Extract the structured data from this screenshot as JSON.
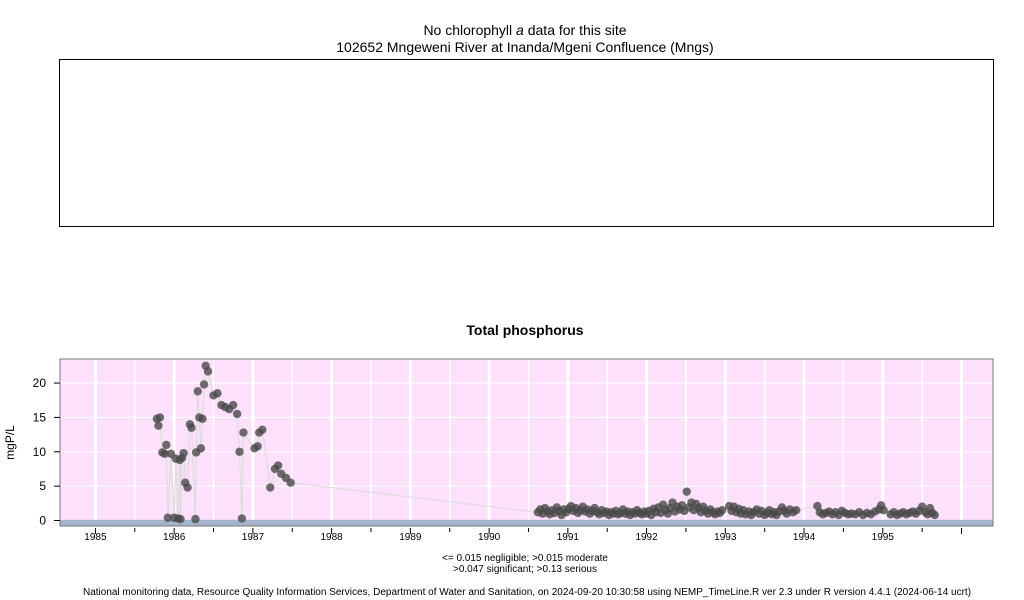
{
  "header": {
    "line1_pre": "No chlorophyll",
    "line1_italic": "a",
    "line1_post": " data for this site",
    "line2": "102652 Mngeweni River at Inanda/Mgeni Confluence (Mngs)"
  },
  "colors": {
    "plot_bg": "#fce0fc",
    "band_bg": "#a4b4cc",
    "point": "#4a4a4a",
    "line": "#dcdcdc",
    "grid": "#ffffff"
  },
  "chart_data": {
    "type": "scatter",
    "title": "Total phosphorus",
    "ylabel": "mgP/L",
    "xlabel": "",
    "xlim": [
      1984.55,
      1996.4
    ],
    "ylim": [
      -0.8,
      23.5
    ],
    "x_ticks": [
      "1985",
      "1986",
      "1987",
      "1988",
      "1989",
      "1990",
      "1991",
      "1992",
      "1993",
      "1994",
      "1995"
    ],
    "y_ticks": [
      "0",
      "5",
      "10",
      "15",
      "20"
    ],
    "grid": true,
    "series": [
      {
        "points": [
          [
            1985.78,
            14.8
          ],
          [
            1985.8,
            13.8
          ],
          [
            1985.82,
            15.0
          ],
          [
            1985.85,
            9.9
          ],
          [
            1985.88,
            9.7
          ],
          [
            1985.9,
            11.0
          ],
          [
            1985.92,
            0.4
          ],
          [
            1985.96,
            9.7
          ],
          [
            1986.0,
            0.4
          ],
          [
            1986.02,
            9.0
          ],
          [
            1986.05,
            0.3
          ],
          [
            1986.07,
            8.8
          ],
          [
            1986.08,
            0.2
          ],
          [
            1986.1,
            9.1
          ],
          [
            1986.12,
            9.8
          ],
          [
            1986.14,
            5.5
          ],
          [
            1986.17,
            4.8
          ],
          [
            1986.2,
            14.0
          ],
          [
            1986.22,
            13.5
          ],
          [
            1986.27,
            0.2
          ],
          [
            1986.28,
            9.9
          ],
          [
            1986.3,
            18.8
          ],
          [
            1986.32,
            15.0
          ],
          [
            1986.34,
            10.5
          ],
          [
            1986.36,
            14.8
          ],
          [
            1986.38,
            19.8
          ],
          [
            1986.4,
            22.5
          ],
          [
            1986.43,
            21.7
          ],
          [
            1986.5,
            18.2
          ],
          [
            1986.55,
            18.5
          ],
          [
            1986.6,
            16.8
          ],
          [
            1986.65,
            16.5
          ],
          [
            1986.7,
            16.2
          ],
          [
            1986.75,
            16.8
          ],
          [
            1986.8,
            15.5
          ],
          [
            1986.83,
            10.0
          ],
          [
            1986.86,
            0.3
          ],
          [
            1986.88,
            12.8
          ],
          [
            1987.02,
            10.5
          ],
          [
            1987.06,
            10.8
          ],
          [
            1987.08,
            12.8
          ],
          [
            1987.12,
            13.2
          ],
          [
            1987.22,
            4.8
          ],
          [
            1987.28,
            7.5
          ],
          [
            1987.32,
            8.0
          ],
          [
            1987.36,
            6.8
          ],
          [
            1987.42,
            6.2
          ],
          [
            1987.48,
            5.5
          ],
          [
            1990.62,
            1.2
          ],
          [
            1990.65,
            1.6
          ],
          [
            1990.68,
            1.0
          ],
          [
            1990.71,
            1.8
          ],
          [
            1990.74,
            1.3
          ],
          [
            1990.77,
            0.9
          ],
          [
            1990.8,
            1.5
          ],
          [
            1990.83,
            1.1
          ],
          [
            1990.86,
            1.9
          ],
          [
            1990.89,
            1.4
          ],
          [
            1990.92,
            0.8
          ],
          [
            1990.95,
            1.6
          ],
          [
            1990.98,
            1.2
          ],
          [
            1991.01,
            1.7
          ],
          [
            1991.04,
            2.1
          ],
          [
            1991.07,
            1.4
          ],
          [
            1991.1,
            1.8
          ],
          [
            1991.13,
            1.1
          ],
          [
            1991.16,
            1.5
          ],
          [
            1991.19,
            2.0
          ],
          [
            1991.22,
            1.3
          ],
          [
            1991.25,
            1.6
          ],
          [
            1991.28,
            1.0
          ],
          [
            1991.31,
            1.4
          ],
          [
            1991.34,
            1.8
          ],
          [
            1991.37,
            1.2
          ],
          [
            1991.4,
            0.9
          ],
          [
            1991.43,
            1.5
          ],
          [
            1991.46,
            1.1
          ],
          [
            1991.49,
            1.3
          ],
          [
            1991.52,
            0.8
          ],
          [
            1991.55,
            1.2
          ],
          [
            1991.58,
            1.0
          ],
          [
            1991.61,
            1.4
          ],
          [
            1991.64,
            0.9
          ],
          [
            1991.67,
            1.1
          ],
          [
            1991.7,
            1.6
          ],
          [
            1991.73,
            1.0
          ],
          [
            1991.76,
            1.3
          ],
          [
            1991.79,
            0.8
          ],
          [
            1991.82,
            1.2
          ],
          [
            1991.85,
            1.0
          ],
          [
            1991.88,
            1.5
          ],
          [
            1991.91,
            1.1
          ],
          [
            1991.94,
            0.9
          ],
          [
            1991.97,
            1.3
          ],
          [
            1992.0,
            1.0
          ],
          [
            1992.03,
            1.4
          ],
          [
            1992.06,
            0.8
          ],
          [
            1992.09,
            1.7
          ],
          [
            1992.12,
            1.2
          ],
          [
            1992.15,
            1.9
          ],
          [
            1992.18,
            1.1
          ],
          [
            1992.21,
            2.3
          ],
          [
            1992.24,
            1.5
          ],
          [
            1992.27,
            1.0
          ],
          [
            1992.3,
            1.8
          ],
          [
            1992.33,
            2.6
          ],
          [
            1992.36,
            1.3
          ],
          [
            1992.39,
            2.0
          ],
          [
            1992.42,
            1.6
          ],
          [
            1992.45,
            2.2
          ],
          [
            1992.48,
            1.4
          ],
          [
            1992.51,
            4.2
          ],
          [
            1992.54,
            1.9
          ],
          [
            1992.57,
            2.6
          ],
          [
            1992.6,
            1.5
          ],
          [
            1992.63,
            2.4
          ],
          [
            1992.66,
            1.8
          ],
          [
            1992.69,
            1.2
          ],
          [
            1992.72,
            2.0
          ],
          [
            1992.75,
            1.4
          ],
          [
            1992.78,
            1.0
          ],
          [
            1992.81,
            1.6
          ],
          [
            1992.84,
            1.2
          ],
          [
            1992.87,
            0.9
          ],
          [
            1992.9,
            1.3
          ],
          [
            1992.93,
            1.1
          ],
          [
            1992.96,
            1.5
          ],
          [
            1993.05,
            2.1
          ],
          [
            1993.08,
            1.4
          ],
          [
            1993.11,
            2.0
          ],
          [
            1993.14,
            1.2
          ],
          [
            1993.17,
            1.7
          ],
          [
            1993.2,
            1.0
          ],
          [
            1993.23,
            1.5
          ],
          [
            1993.26,
            0.9
          ],
          [
            1993.3,
            1.3
          ],
          [
            1993.33,
            0.8
          ],
          [
            1993.36,
            1.2
          ],
          [
            1993.4,
            1.6
          ],
          [
            1993.43,
            1.0
          ],
          [
            1993.46,
            1.4
          ],
          [
            1993.5,
            0.8
          ],
          [
            1993.53,
            1.1
          ],
          [
            1993.56,
            1.5
          ],
          [
            1993.59,
            0.9
          ],
          [
            1993.62,
            1.2
          ],
          [
            1993.65,
            0.8
          ],
          [
            1993.68,
            1.3
          ],
          [
            1993.72,
            1.9
          ],
          [
            1993.75,
            1.4
          ],
          [
            1993.78,
            1.0
          ],
          [
            1993.82,
            1.6
          ],
          [
            1993.86,
            1.2
          ],
          [
            1993.9,
            1.5
          ],
          [
            1994.17,
            2.1
          ],
          [
            1994.2,
            1.2
          ],
          [
            1994.24,
            0.9
          ],
          [
            1994.28,
            1.1
          ],
          [
            1994.32,
            1.3
          ],
          [
            1994.36,
            0.9
          ],
          [
            1994.4,
            1.2
          ],
          [
            1994.44,
            0.8
          ],
          [
            1994.48,
            1.4
          ],
          [
            1994.52,
            1.1
          ],
          [
            1994.56,
            0.9
          ],
          [
            1994.6,
            1.0
          ],
          [
            1994.65,
            0.9
          ],
          [
            1994.7,
            1.2
          ],
          [
            1994.75,
            0.8
          ],
          [
            1994.8,
            1.1
          ],
          [
            1994.85,
            0.9
          ],
          [
            1994.9,
            1.3
          ],
          [
            1994.95,
            1.6
          ],
          [
            1994.98,
            2.2
          ],
          [
            1995.01,
            1.5
          ],
          [
            1995.1,
            0.9
          ],
          [
            1995.14,
            1.2
          ],
          [
            1995.18,
            0.8
          ],
          [
            1995.22,
            1.0
          ],
          [
            1995.26,
            1.2
          ],
          [
            1995.3,
            0.9
          ],
          [
            1995.34,
            1.1
          ],
          [
            1995.38,
            1.3
          ],
          [
            1995.42,
            1.0
          ],
          [
            1995.46,
            1.4
          ],
          [
            1995.5,
            2.0
          ],
          [
            1995.54,
            1.2
          ],
          [
            1995.57,
            0.9
          ],
          [
            1995.6,
            1.8
          ],
          [
            1995.63,
            1.1
          ],
          [
            1995.66,
            0.8
          ]
        ]
      }
    ]
  },
  "legend": {
    "line1": "<= 0.015 negligible; >0.015 moderate",
    "line2": ">0.047 significant; >0.13 serious"
  },
  "footer": {
    "text": "National monitoring data, Resource Quality Information Services, Department of Water and Sanitation, on 2024-09-20 10:30:58 using NEMP_TimeLine.R ver 2.3 under R version 4.4.1 (2024-06-14 ucrt)"
  }
}
